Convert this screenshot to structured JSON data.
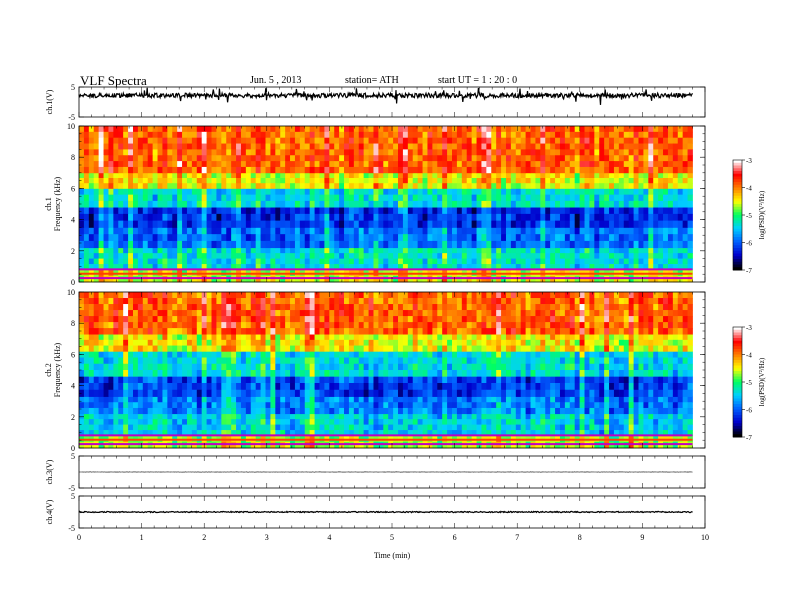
{
  "header": {
    "title": "VLF  Spectra",
    "date": "Jun. 5  , 2013",
    "station": "station= ATH",
    "start": "start  UT  =    1  : 20 : 0"
  },
  "colors": {
    "trace": "#000000",
    "colormap": [
      "#000000",
      "#0000cc",
      "#0060ff",
      "#00d0ff",
      "#00ff60",
      "#ffff00",
      "#ff8000",
      "#ff0000",
      "#ffffff"
    ]
  },
  "chart_data": [
    {
      "type": "line",
      "panel": "ch1-waveform",
      "ylabel": "ch.1(V)",
      "ylim": [
        -5,
        5
      ],
      "yticks": [
        "5",
        "-5"
      ],
      "xlim": [
        0,
        10
      ],
      "baseline": 2.2,
      "noise_amplitude": 1.5,
      "duration_min": 9.8
    },
    {
      "type": "heatmap",
      "panel": "ch1-spectrogram",
      "ylabel": [
        "ch.1",
        "Frequency  (kHz)"
      ],
      "ylim": [
        0,
        10
      ],
      "yticks": [
        "0",
        "2",
        "4",
        "6",
        "8",
        "10"
      ],
      "xlim": [
        0,
        10
      ],
      "duration_min": 9.8,
      "bands": [
        {
          "f_from": 0,
          "f_to": 0.8,
          "logPSD": -4.6
        },
        {
          "f_from": 0.8,
          "f_to": 2.2,
          "logPSD": -5.4
        },
        {
          "f_from": 2.2,
          "f_to": 3.5,
          "logPSD": -6.0
        },
        {
          "f_from": 3.5,
          "f_to": 4.8,
          "logPSD": -6.3
        },
        {
          "f_from": 4.8,
          "f_to": 6.0,
          "logPSD": -5.4
        },
        {
          "f_from": 6.0,
          "f_to": 7.0,
          "logPSD": -4.5
        },
        {
          "f_from": 7.0,
          "f_to": 10,
          "logPSD": -3.9
        }
      ],
      "colorbar": {
        "label": "log(PSD)(V²/Hz)",
        "ticks": [
          "-3",
          "-4",
          "-5",
          "-6",
          "-7"
        ],
        "range": [
          -7,
          -3
        ]
      }
    },
    {
      "type": "heatmap",
      "panel": "ch2-spectrogram",
      "ylabel": [
        "ch.2",
        "Frequency  (kHz)"
      ],
      "ylim": [
        0,
        10
      ],
      "yticks": [
        "0",
        "2",
        "4",
        "6",
        "8",
        "10"
      ],
      "xlim": [
        0,
        10
      ],
      "duration_min": 9.8,
      "bands": [
        {
          "f_from": 0,
          "f_to": 0.8,
          "logPSD": -4.7
        },
        {
          "f_from": 0.8,
          "f_to": 2.2,
          "logPSD": -5.5
        },
        {
          "f_from": 2.2,
          "f_to": 3.3,
          "logPSD": -5.9
        },
        {
          "f_from": 3.3,
          "f_to": 4.6,
          "logPSD": -6.2
        },
        {
          "f_from": 4.6,
          "f_to": 6.2,
          "logPSD": -5.4
        },
        {
          "f_from": 6.2,
          "f_to": 7.3,
          "logPSD": -4.5
        },
        {
          "f_from": 7.3,
          "f_to": 10,
          "logPSD": -3.9
        }
      ],
      "colorbar": {
        "label": "log(PSD)(V²/Hz)",
        "ticks": [
          "-3",
          "-4",
          "-5",
          "-6",
          "-7"
        ],
        "range": [
          -7,
          -3
        ]
      }
    },
    {
      "type": "line",
      "panel": "ch3-waveform",
      "ylabel": "ch.3(V)",
      "ylim": [
        -5,
        5
      ],
      "yticks": [
        "5",
        "-5"
      ],
      "xlim": [
        0,
        10
      ],
      "baseline": 0.0,
      "noise_amplitude": 0.1,
      "duration_min": 9.8
    },
    {
      "type": "line",
      "panel": "ch4-waveform",
      "ylabel": "ch.4(V)",
      "ylim": [
        -5,
        5
      ],
      "yticks": [
        "5",
        "-5"
      ],
      "xlim": [
        0,
        10
      ],
      "baseline": 0.0,
      "noise_amplitude": 0.35,
      "duration_min": 9.8
    }
  ],
  "xaxis": {
    "label": "Time  (min)",
    "ticks": [
      0,
      1,
      2,
      3,
      4,
      5,
      6,
      7,
      8,
      9,
      10
    ]
  }
}
